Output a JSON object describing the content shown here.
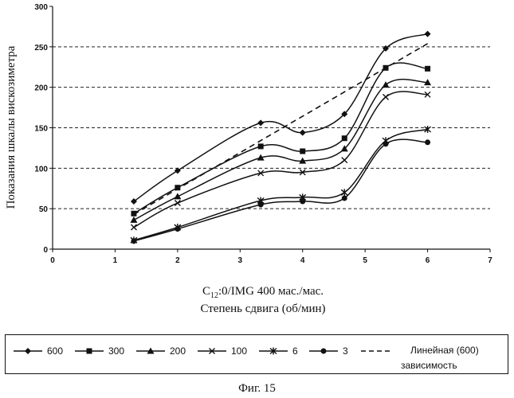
{
  "caption": "Фиг. 15",
  "chart_data": {
    "type": "line",
    "title": "",
    "xlabel_line1_prefix": "C",
    "xlabel_line1_sub": "12",
    "xlabel_line1_rest": ":0/IMG 400 мас./мас.",
    "xlabel": "Степень сдвига (об/мин)",
    "ylabel": "Показания шкалы вискозиметра",
    "xlim": [
      0,
      7
    ],
    "ylim": [
      0,
      300
    ],
    "xticks": [
      "0",
      "1",
      "2",
      "3",
      "4",
      "5",
      "6",
      "7"
    ],
    "yticks": [
      "0",
      "50",
      "100",
      "150",
      "200",
      "250",
      "300"
    ],
    "grid": "horizontal dashed",
    "legend_position": "bottom",
    "series": [
      {
        "name": "600",
        "marker": "diamond",
        "x": [
          1.3,
          2,
          3.33,
          4,
          4.67,
          5.33,
          6
        ],
        "values": [
          59,
          97,
          156,
          144,
          167,
          248,
          266
        ]
      },
      {
        "name": "300",
        "marker": "square",
        "x": [
          1.3,
          2,
          3.33,
          4,
          4.67,
          5.33,
          6
        ],
        "values": [
          44,
          76,
          127,
          121,
          137,
          224,
          223
        ]
      },
      {
        "name": "200",
        "marker": "triangle",
        "x": [
          1.3,
          2,
          3.33,
          4,
          4.67,
          5.33,
          6
        ],
        "values": [
          36,
          65,
          113,
          109,
          124,
          203,
          206
        ]
      },
      {
        "name": "100",
        "marker": "x",
        "x": [
          1.3,
          2,
          3.33,
          4,
          4.67,
          5.33,
          6
        ],
        "values": [
          27,
          57,
          94,
          95,
          110,
          188,
          191
        ]
      },
      {
        "name": "6",
        "marker": "star",
        "x": [
          1.3,
          2,
          3.33,
          4,
          4.67,
          5.33,
          6
        ],
        "values": [
          11,
          27,
          60,
          64,
          70,
          134,
          148
        ]
      },
      {
        "name": "3",
        "marker": "circle",
        "x": [
          1.3,
          2,
          3.33,
          4,
          4.67,
          5.33,
          6
        ],
        "values": [
          10,
          25,
          55,
          59,
          63,
          130,
          132
        ]
      }
    ],
    "trendline": {
      "name_line1": "Линейная (600)",
      "name_line2": "зависимость",
      "x": [
        1.3,
        6
      ],
      "values": [
        43,
        254
      ]
    }
  }
}
